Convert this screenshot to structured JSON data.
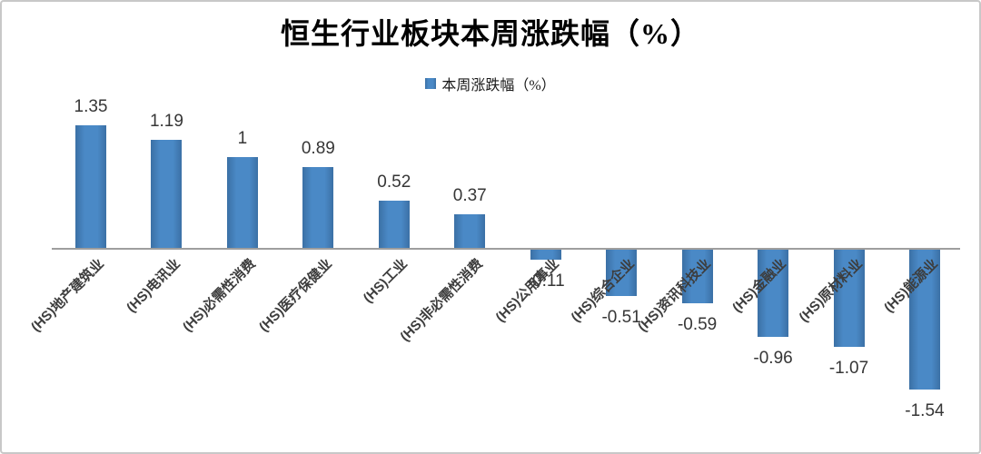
{
  "chart_data": {
    "type": "bar",
    "title": "恒生行业板块本周涨跌幅（%）",
    "legend": [
      {
        "label": "本周涨跌幅（%）"
      }
    ],
    "legend_position": "top-center",
    "categories": [
      "(HS)地产建筑业",
      "(HS)电讯业",
      "(HS)必需性消费",
      "(HS)医疗保健业",
      "(HS)工业",
      "(HS)非必需性消费",
      "(HS)公用事业",
      "(HS)综合企业",
      "(HS)资讯科技业",
      "(HS)金融业",
      "(HS)原材料业",
      "(HS)能源业"
    ],
    "series": [
      {
        "name": "本周涨跌幅（%）",
        "values": [
          1.35,
          1.19,
          1,
          0.89,
          0.52,
          0.37,
          -0.11,
          -0.51,
          -0.59,
          -0.96,
          -1.07,
          -1.54
        ]
      }
    ],
    "value_labels": [
      "1.35",
      "1.19",
      "1",
      "0.89",
      "0.52",
      "0.37",
      "-0.11",
      "-0.51",
      "-0.59",
      "-0.96",
      "-1.07",
      "-1.54"
    ],
    "xlabel": "",
    "ylabel": "",
    "ylim": [
      -1.6,
      1.5
    ],
    "grid": false,
    "colors": {
      "bar_center": "#4a89c6",
      "bar_edge": "#3b70a5",
      "axis_line": "#9e9e9e",
      "value_text": "#363636",
      "category_text": "#3d3d3d",
      "frame_border": "#c8c8c8"
    }
  }
}
